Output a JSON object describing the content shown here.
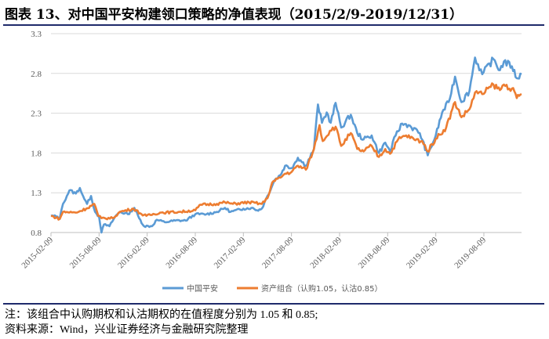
{
  "title": "图表 13、对中国平安构建领口策略的净值表现（2015/2/9-2019/12/31）",
  "notes": {
    "note": "注：该组合中认购期权和认沽期权的在值程度分别为 1.05 和 0.85;",
    "source": "资料来源：Wind，兴业证券经济与金融研究院整理"
  },
  "chart_data": {
    "type": "line",
    "title": "",
    "xlabel": "",
    "ylabel": "",
    "x_unit": "months since 2015-02-09",
    "xlim": [
      0,
      58.7
    ],
    "ylim": [
      0.8,
      3.3
    ],
    "yticks": [
      "0.8",
      "1.3",
      "1.8",
      "2.3",
      "2.8",
      "3.3"
    ],
    "ytick_values": [
      0.8,
      1.3,
      1.8,
      2.3,
      2.8,
      3.3
    ],
    "xticks": [
      "2015-02-09",
      "2015-08-09",
      "2016-02-09",
      "2016-08-09",
      "2017-02-09",
      "2017-08-09",
      "2018-02-09",
      "2018-08-09",
      "2019-02-09",
      "2019-08-09"
    ],
    "xtick_values": [
      0,
      6,
      12,
      18,
      24,
      30,
      36,
      42,
      48,
      54
    ],
    "grid": true,
    "legend_position": "bottom",
    "series": [
      {
        "name": "中国平安",
        "color": "#5b9bd5",
        "points": [
          [
            0,
            1.01
          ],
          [
            0.8,
            1.0
          ],
          [
            1.1,
            0.98
          ],
          [
            1.5,
            1.16
          ],
          [
            2.3,
            1.33
          ],
          [
            3.1,
            1.29
          ],
          [
            3.6,
            1.36
          ],
          [
            4.0,
            1.26
          ],
          [
            4.5,
            1.16
          ],
          [
            5.0,
            1.26
          ],
          [
            5.5,
            1.06
          ],
          [
            6.0,
            1.0
          ],
          [
            6.3,
            0.8
          ],
          [
            6.6,
            0.9
          ],
          [
            7.3,
            0.88
          ],
          [
            8.0,
            1.0
          ],
          [
            8.6,
            1.06
          ],
          [
            9.6,
            1.03
          ],
          [
            10.4,
            1.11
          ],
          [
            11.0,
            0.98
          ],
          [
            11.6,
            0.88
          ],
          [
            12.6,
            0.88
          ],
          [
            13.2,
            0.96
          ],
          [
            14.2,
            0.93
          ],
          [
            15.5,
            0.95
          ],
          [
            16.8,
            0.95
          ],
          [
            18.0,
            1.03
          ],
          [
            19.4,
            1.03
          ],
          [
            20.7,
            1.06
          ],
          [
            21.7,
            1.11
          ],
          [
            22.4,
            1.06
          ],
          [
            24.0,
            1.1
          ],
          [
            25.0,
            1.11
          ],
          [
            25.7,
            1.08
          ],
          [
            26.3,
            1.1
          ],
          [
            27.0,
            1.26
          ],
          [
            27.9,
            1.46
          ],
          [
            28.6,
            1.52
          ],
          [
            29.2,
            1.64
          ],
          [
            30.0,
            1.61
          ],
          [
            30.8,
            1.74
          ],
          [
            31.8,
            1.64
          ],
          [
            32.8,
            1.85
          ],
          [
            33.3,
            2.41
          ],
          [
            33.8,
            2.18
          ],
          [
            34.4,
            2.31
          ],
          [
            34.9,
            2.18
          ],
          [
            35.5,
            2.43
          ],
          [
            36.2,
            2.12
          ],
          [
            37.4,
            2.28
          ],
          [
            38.2,
            2.05
          ],
          [
            39.0,
            1.97
          ],
          [
            40.0,
            2.02
          ],
          [
            40.9,
            1.8
          ],
          [
            41.7,
            1.93
          ],
          [
            42.3,
            1.82
          ],
          [
            43.0,
            2.02
          ],
          [
            43.8,
            2.17
          ],
          [
            44.6,
            2.15
          ],
          [
            46.0,
            2.05
          ],
          [
            47.0,
            1.77
          ],
          [
            48.0,
            2.02
          ],
          [
            48.8,
            2.31
          ],
          [
            49.6,
            2.44
          ],
          [
            50.4,
            2.76
          ],
          [
            51.2,
            2.44
          ],
          [
            52.2,
            2.58
          ],
          [
            52.9,
            3.0
          ],
          [
            53.8,
            2.79
          ],
          [
            55.2,
            2.98
          ],
          [
            56.0,
            2.84
          ],
          [
            56.5,
            2.95
          ],
          [
            57.5,
            2.89
          ],
          [
            58.1,
            2.74
          ],
          [
            58.7,
            2.79
          ]
        ]
      },
      {
        "name": "资产组合（认购1.05，认沽0.85）",
        "color": "#ed7d31",
        "points": [
          [
            0,
            1.01
          ],
          [
            1.1,
            0.97
          ],
          [
            1.5,
            1.06
          ],
          [
            3.1,
            1.05
          ],
          [
            4.4,
            1.1
          ],
          [
            5.4,
            1.16
          ],
          [
            5.9,
            1.01
          ],
          [
            6.3,
            0.98
          ],
          [
            7.7,
            0.98
          ],
          [
            8.6,
            1.06
          ],
          [
            10.3,
            1.1
          ],
          [
            11.3,
            1.03
          ],
          [
            11.9,
            1.01
          ],
          [
            13.6,
            1.05
          ],
          [
            16.2,
            1.06
          ],
          [
            18.0,
            1.08
          ],
          [
            18.7,
            1.15
          ],
          [
            20.7,
            1.16
          ],
          [
            21.7,
            1.18
          ],
          [
            22.7,
            1.16
          ],
          [
            24.7,
            1.18
          ],
          [
            26.3,
            1.16
          ],
          [
            27.0,
            1.23
          ],
          [
            27.6,
            1.43
          ],
          [
            28.6,
            1.49
          ],
          [
            29.2,
            1.54
          ],
          [
            30.0,
            1.56
          ],
          [
            30.8,
            1.64
          ],
          [
            31.8,
            1.59
          ],
          [
            32.8,
            1.85
          ],
          [
            33.5,
            2.15
          ],
          [
            33.9,
            1.95
          ],
          [
            34.8,
            2.08
          ],
          [
            35.5,
            2.13
          ],
          [
            36.2,
            1.89
          ],
          [
            37.4,
            2.05
          ],
          [
            38.2,
            1.85
          ],
          [
            39.0,
            1.82
          ],
          [
            40.0,
            1.89
          ],
          [
            40.9,
            1.75
          ],
          [
            41.7,
            1.85
          ],
          [
            42.3,
            1.79
          ],
          [
            43.3,
            1.97
          ],
          [
            44.3,
            2.02
          ],
          [
            45.3,
            1.97
          ],
          [
            46.3,
            1.95
          ],
          [
            47.0,
            1.82
          ],
          [
            48.0,
            1.98
          ],
          [
            49.3,
            2.12
          ],
          [
            50.4,
            2.44
          ],
          [
            51.2,
            2.25
          ],
          [
            52.2,
            2.35
          ],
          [
            52.9,
            2.56
          ],
          [
            53.8,
            2.54
          ],
          [
            55.2,
            2.66
          ],
          [
            56.0,
            2.59
          ],
          [
            56.5,
            2.66
          ],
          [
            57.5,
            2.61
          ],
          [
            58.1,
            2.49
          ],
          [
            58.7,
            2.54
          ]
        ]
      }
    ]
  }
}
